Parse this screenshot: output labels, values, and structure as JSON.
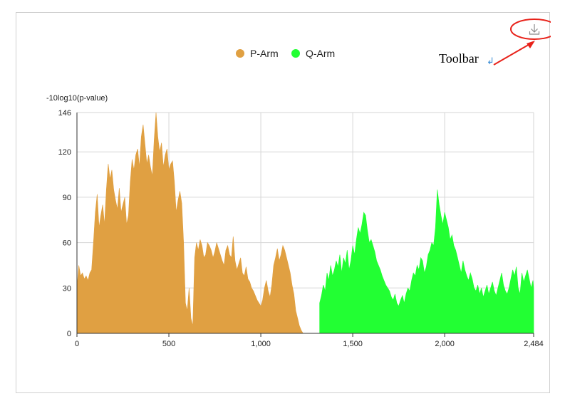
{
  "toolbar": {
    "label": "Toolbar",
    "return_glyph": "↲",
    "download_icon": "download-icon",
    "annotation_color": "#e8221a"
  },
  "colors": {
    "p_arm": "#e0a042",
    "q_arm": "#22ff33",
    "grid": "#d6d6d6"
  },
  "chart_data": {
    "type": "area",
    "title": "",
    "xlabel": "",
    "ylabel": "-10log10(p-value)",
    "xlim": [
      0,
      2484
    ],
    "ylim": [
      0,
      146
    ],
    "x_ticks": [
      0,
      500,
      1000,
      1500,
      2000,
      2484
    ],
    "x_tick_labels": [
      "0",
      "500",
      "1,000",
      "1,500",
      "2,000",
      "2,484"
    ],
    "y_ticks": [
      0,
      30,
      60,
      90,
      120,
      146
    ],
    "y_tick_labels": [
      "0",
      "30",
      "60",
      "90",
      "120",
      "146"
    ],
    "grid": true,
    "legend_position": "top-center",
    "series": [
      {
        "name": "P-Arm",
        "color": "#e0a042",
        "x": [
          0,
          10,
          20,
          30,
          40,
          50,
          60,
          70,
          80,
          90,
          100,
          110,
          120,
          130,
          140,
          150,
          160,
          170,
          180,
          190,
          200,
          210,
          220,
          230,
          240,
          250,
          260,
          270,
          280,
          290,
          300,
          310,
          320,
          330,
          340,
          350,
          360,
          370,
          380,
          390,
          400,
          410,
          420,
          430,
          440,
          450,
          460,
          470,
          480,
          490,
          500,
          510,
          520,
          530,
          540,
          550,
          560,
          570,
          580,
          590,
          600,
          610,
          620,
          630,
          640,
          650,
          660,
          670,
          680,
          690,
          700,
          710,
          720,
          730,
          740,
          750,
          760,
          770,
          780,
          790,
          800,
          810,
          820,
          830,
          840,
          850,
          860,
          870,
          880,
          890,
          900,
          910,
          920,
          930,
          940,
          950,
          960,
          970,
          980,
          990,
          1000,
          1010,
          1020,
          1030,
          1040,
          1050,
          1060,
          1070,
          1080,
          1090,
          1100,
          1110,
          1120,
          1130,
          1140,
          1150,
          1160,
          1170,
          1180,
          1190,
          1200,
          1210,
          1220,
          1230,
          1240,
          1250,
          1260,
          1270
        ],
        "y": [
          30,
          45,
          38,
          40,
          36,
          38,
          35,
          40,
          42,
          60,
          80,
          92,
          70,
          78,
          85,
          72,
          95,
          112,
          102,
          108,
          95,
          88,
          82,
          96,
          80,
          85,
          90,
          72,
          78,
          100,
          115,
          108,
          118,
          122,
          110,
          130,
          138,
          125,
          112,
          118,
          110,
          104,
          128,
          146,
          130,
          120,
          126,
          110,
          118,
          122,
          108,
          112,
          114,
          100,
          80,
          88,
          94,
          86,
          60,
          20,
          15,
          30,
          10,
          5,
          50,
          60,
          55,
          62,
          58,
          50,
          52,
          60,
          58,
          55,
          50,
          54,
          60,
          56,
          52,
          48,
          45,
          55,
          58,
          52,
          50,
          64,
          48,
          42,
          46,
          50,
          40,
          38,
          44,
          36,
          34,
          30,
          28,
          25,
          22,
          20,
          18,
          22,
          30,
          35,
          28,
          24,
          32,
          45,
          50,
          56,
          48,
          52,
          58,
          55,
          50,
          45,
          40,
          32,
          26,
          15,
          10,
          5,
          2,
          0,
          0,
          0,
          0,
          0
        ]
      },
      {
        "name": "Q-Arm",
        "color": "#22ff33",
        "x": [
          1320,
          1330,
          1340,
          1350,
          1360,
          1370,
          1380,
          1390,
          1400,
          1410,
          1420,
          1430,
          1440,
          1450,
          1460,
          1470,
          1480,
          1490,
          1500,
          1510,
          1520,
          1530,
          1540,
          1550,
          1560,
          1570,
          1580,
          1590,
          1600,
          1610,
          1620,
          1630,
          1640,
          1650,
          1660,
          1670,
          1680,
          1690,
          1700,
          1710,
          1720,
          1730,
          1740,
          1750,
          1760,
          1770,
          1780,
          1790,
          1800,
          1810,
          1820,
          1830,
          1840,
          1850,
          1860,
          1870,
          1880,
          1890,
          1900,
          1910,
          1920,
          1930,
          1940,
          1950,
          1960,
          1970,
          1980,
          1990,
          2000,
          2010,
          2020,
          2030,
          2040,
          2050,
          2060,
          2070,
          2080,
          2090,
          2100,
          2110,
          2120,
          2130,
          2140,
          2150,
          2160,
          2170,
          2180,
          2190,
          2200,
          2210,
          2220,
          2230,
          2240,
          2250,
          2260,
          2270,
          2280,
          2290,
          2300,
          2310,
          2320,
          2330,
          2340,
          2350,
          2360,
          2370,
          2380,
          2390,
          2400,
          2410,
          2420,
          2430,
          2440,
          2450,
          2460,
          2470,
          2480,
          2484
        ],
        "y": [
          20,
          25,
          32,
          28,
          40,
          35,
          45,
          38,
          42,
          48,
          44,
          52,
          40,
          50,
          46,
          55,
          42,
          48,
          58,
          52,
          62,
          70,
          66,
          72,
          80,
          78,
          68,
          60,
          62,
          58,
          54,
          48,
          45,
          42,
          38,
          35,
          32,
          30,
          28,
          24,
          22,
          26,
          20,
          18,
          22,
          25,
          20,
          26,
          30,
          28,
          35,
          40,
          38,
          45,
          42,
          50,
          48,
          40,
          44,
          52,
          55,
          60,
          58,
          70,
          95,
          85,
          78,
          72,
          80,
          75,
          70,
          62,
          65,
          58,
          55,
          50,
          45,
          40,
          48,
          42,
          38,
          35,
          40,
          36,
          30,
          28,
          32,
          26,
          30,
          24,
          28,
          32,
          26,
          30,
          34,
          28,
          25,
          30,
          35,
          40,
          32,
          28,
          26,
          30,
          36,
          42,
          38,
          44,
          30,
          26,
          40,
          34,
          38,
          42,
          36,
          30,
          35,
          30
        ]
      }
    ]
  }
}
